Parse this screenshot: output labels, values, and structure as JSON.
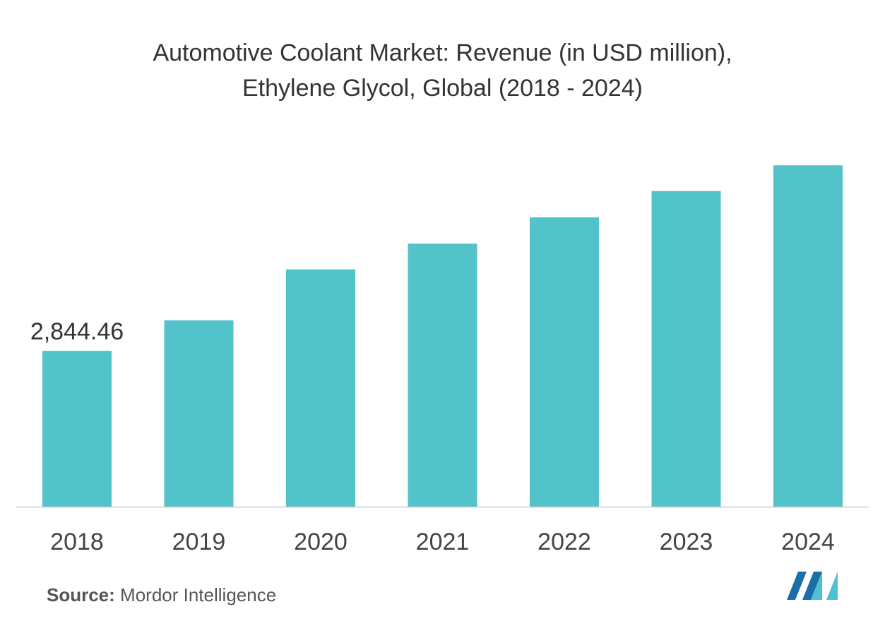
{
  "title": {
    "line1": "Automotive Coolant Market: Revenue (in USD million),",
    "line2": "Ethylene Glycol, Global (2018 - 2024)"
  },
  "chart_data": {
    "type": "bar",
    "categories": [
      "2018",
      "2019",
      "2020",
      "2021",
      "2022",
      "2023",
      "2024"
    ],
    "values": [
      2844.46,
      3400,
      4330,
      4800,
      5280,
      5760,
      6230
    ],
    "data_labels": [
      "2,844.46",
      "",
      "",
      "",
      "",
      "",
      ""
    ],
    "title": "Automotive Coolant Market: Revenue (in USD million), Ethylene Glycol, Global (2018 - 2024)",
    "xlabel": "",
    "ylabel": "",
    "ylim": [
      0,
      6800
    ],
    "grid": false,
    "legend": "none",
    "bar_color": "#52c3c9",
    "axis_color": "#cccccc"
  },
  "source": {
    "label": "Source:",
    "text": "Mordor Intelligence"
  },
  "logo": {
    "icon": "mordor-intelligence-logo-icon",
    "colors": [
      "#1b6ea8",
      "#4fc0d0"
    ]
  }
}
